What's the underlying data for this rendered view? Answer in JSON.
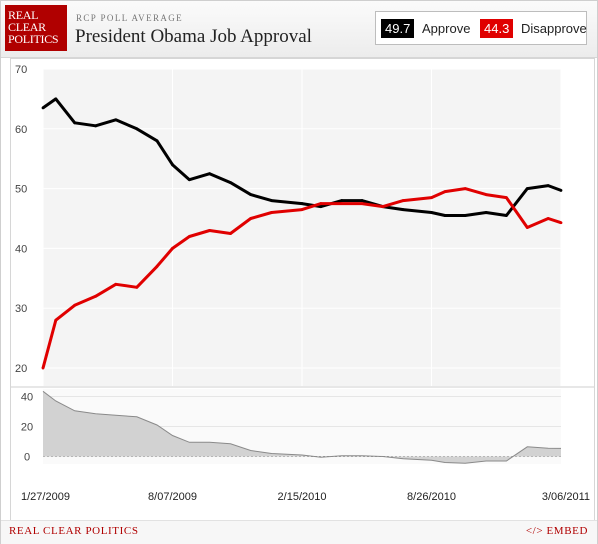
{
  "header": {
    "logo_lines": [
      "REAL",
      "CLEAR",
      "POLITICS"
    ],
    "kicker": "RCP POLL AVERAGE",
    "title": "President Obama Job Approval"
  },
  "legend": {
    "approve_value": "49.7",
    "approve_label": "Approve",
    "disapprove_value": "44.3",
    "disapprove_label": "Disapprove"
  },
  "footer": {
    "brand": "REAL CLEAR POLITICS",
    "embed": "</> EMBED"
  },
  "colors": {
    "approve": "#000000",
    "disapprove": "#e00000",
    "spread_fill": "#d2d2d2",
    "spread_line": "#8a8a8a",
    "plot_bg": "#f4f4f4",
    "brand_red": "#b00000"
  },
  "chart_data": [
    {
      "type": "line",
      "x_tick_labels": [
        "1/27/2009",
        "8/07/2009",
        "2/15/2010",
        "8/26/2010",
        "3/06/2011"
      ],
      "ylim": [
        17,
        70
      ],
      "y_ticks": [
        20,
        30,
        40,
        50,
        60,
        70
      ],
      "grid": true,
      "x": [
        "1/27/2009",
        "2/15/2009",
        "3/15/2009",
        "4/15/2009",
        "5/15/2009",
        "6/15/2009",
        "7/15/2009",
        "8/07/2009",
        "9/01/2009",
        "10/01/2009",
        "11/01/2009",
        "12/01/2009",
        "1/01/2010",
        "2/15/2010",
        "3/15/2010",
        "4/15/2010",
        "5/15/2010",
        "6/15/2010",
        "7/15/2010",
        "8/26/2010",
        "9/15/2010",
        "10/15/2010",
        "11/15/2010",
        "12/15/2010",
        "1/15/2011",
        "2/15/2011",
        "3/06/2011"
      ],
      "series": [
        {
          "values": [
            63.5,
            65.0,
            61.0,
            60.5,
            61.5,
            60.0,
            58.0,
            54.0,
            51.5,
            52.5,
            51.0,
            49.0,
            48.0,
            47.5,
            47.0,
            48.0,
            48.0,
            47.0,
            46.5,
            46.0,
            45.5,
            45.5,
            46.0,
            45.5,
            50.0,
            50.5,
            49.7
          ]
        },
        {
          "values": [
            20.0,
            28.0,
            30.5,
            32.0,
            34.0,
            33.5,
            37.0,
            40.0,
            42.0,
            43.0,
            42.5,
            45.0,
            46.0,
            46.5,
            47.5,
            47.5,
            47.5,
            47.0,
            48.0,
            48.5,
            49.5,
            50.0,
            49.0,
            48.5,
            43.5,
            45.0,
            44.3
          ]
        }
      ]
    },
    {
      "type": "area",
      "ylim": [
        -5,
        45
      ],
      "y_ticks": [
        0,
        20,
        40
      ],
      "grid": true,
      "x": [
        "1/27/2009",
        "2/15/2009",
        "3/15/2009",
        "4/15/2009",
        "5/15/2009",
        "6/15/2009",
        "7/15/2009",
        "8/07/2009",
        "9/01/2009",
        "10/01/2009",
        "11/01/2009",
        "12/01/2009",
        "1/01/2010",
        "2/15/2010",
        "3/15/2010",
        "4/15/2010",
        "5/15/2010",
        "6/15/2010",
        "7/15/2010",
        "8/26/2010",
        "9/15/2010",
        "10/15/2010",
        "11/15/2010",
        "12/15/2010",
        "1/15/2011",
        "2/15/2011",
        "3/06/2011"
      ],
      "series": [
        {
          "values": [
            43.5,
            37.0,
            30.5,
            28.5,
            27.5,
            26.5,
            21.0,
            14.0,
            9.5,
            9.5,
            8.5,
            4.0,
            2.0,
            1.0,
            -0.5,
            0.5,
            0.5,
            0.0,
            -1.5,
            -2.5,
            -4.0,
            -4.5,
            -3.0,
            -3.0,
            6.5,
            5.5,
            5.4
          ]
        }
      ]
    }
  ]
}
